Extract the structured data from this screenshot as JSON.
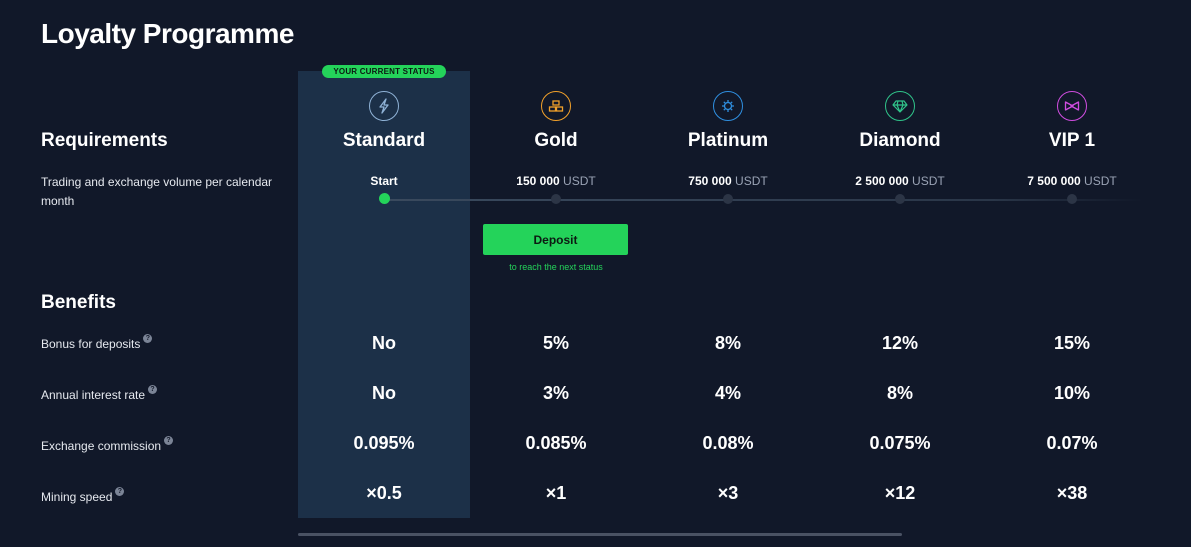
{
  "page": {
    "title": "Loyalty Programme"
  },
  "current_status_badge": "YOUR CURRENT STATUS",
  "requirements": {
    "title": "Requirements",
    "volume_label": "Trading and exchange volume per calendar month"
  },
  "tiers": [
    {
      "name": "Standard",
      "volume": "Start",
      "unit": "",
      "icon": "lightning-icon",
      "color": "#8fb2d6",
      "current": true,
      "bonus": "No",
      "interest": "No",
      "commission": "0.095%",
      "mining": "×0.5"
    },
    {
      "name": "Gold",
      "volume": "150 000",
      "unit": "USDT",
      "icon": "gold-bars-icon",
      "color": "#f2a12a",
      "current": false,
      "bonus": "5%",
      "interest": "3%",
      "commission": "0.085%",
      "mining": "×1"
    },
    {
      "name": "Platinum",
      "volume": "750 000",
      "unit": "USDT",
      "icon": "gear-badge-icon",
      "color": "#2f8fe0",
      "current": false,
      "bonus": "8%",
      "interest": "4%",
      "commission": "0.08%",
      "mining": "×3"
    },
    {
      "name": "Diamond",
      "volume": "2 500 000",
      "unit": "USDT",
      "icon": "diamond-icon",
      "color": "#30c48a",
      "current": false,
      "bonus": "12%",
      "interest": "8%",
      "commission": "0.075%",
      "mining": "×12"
    },
    {
      "name": "VIP 1",
      "volume": "7 500 000",
      "unit": "USDT",
      "icon": "bow-tie-icon",
      "color": "#d04de0",
      "current": false,
      "bonus": "15%",
      "interest": "10%",
      "commission": "0.07%",
      "mining": "×38"
    }
  ],
  "deposit": {
    "label": "Deposit",
    "hint": "to reach the next status"
  },
  "benefits": {
    "title": "Benefits",
    "rows": [
      {
        "label": "Bonus for deposits"
      },
      {
        "label": "Annual interest rate"
      },
      {
        "label": "Exchange commission"
      },
      {
        "label": "Mining speed"
      }
    ]
  },
  "help_icon_glyph": "?"
}
